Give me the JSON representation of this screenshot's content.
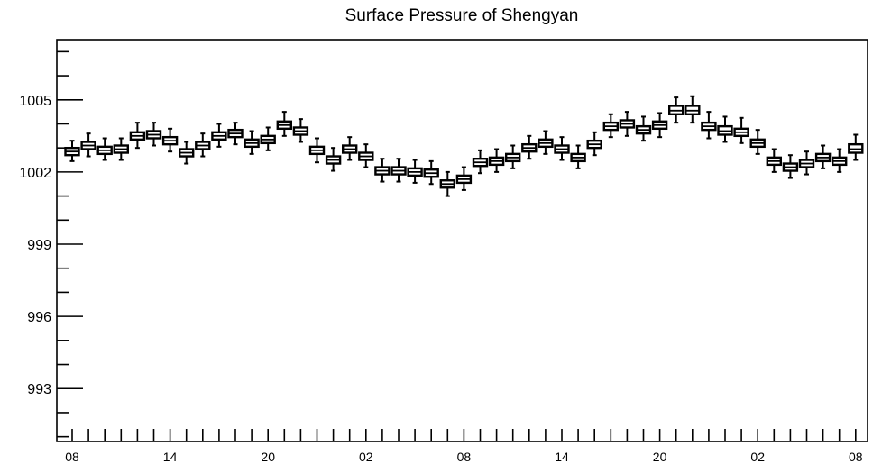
{
  "chart_data": {
    "type": "boxplot",
    "title": "Surface Pressure of Shengyan",
    "xlabel": "",
    "ylabel": "",
    "y_range": [
      990.8,
      1007.5
    ],
    "y_ticks": [
      993,
      996,
      999,
      1002,
      1005
    ],
    "y_tick_labels": [
      "993",
      "996",
      "999",
      "1002",
      "1005"
    ],
    "x_tick_labels": [
      "08",
      "14",
      "20",
      "02",
      "08",
      "14",
      "20",
      "02",
      "08"
    ],
    "x_tick_label_positions": [
      0,
      6,
      12,
      18,
      24,
      30,
      36,
      42,
      48
    ],
    "grid": false,
    "series": [
      {
        "stats": [
          {
            "x": 0,
            "whislo": 1002.45,
            "q1": 1002.7,
            "med": 1002.85,
            "q3": 1003.0,
            "whishi": 1003.3
          },
          {
            "x": 1,
            "whislo": 1002.65,
            "q1": 1002.95,
            "med": 1003.1,
            "q3": 1003.25,
            "whishi": 1003.6
          },
          {
            "x": 2,
            "whislo": 1002.5,
            "q1": 1002.75,
            "med": 1002.9,
            "q3": 1003.05,
            "whishi": 1003.4
          },
          {
            "x": 3,
            "whislo": 1002.5,
            "q1": 1002.8,
            "med": 1002.95,
            "q3": 1003.1,
            "whishi": 1003.4
          },
          {
            "x": 4,
            "whislo": 1003.0,
            "q1": 1003.35,
            "med": 1003.5,
            "q3": 1003.65,
            "whishi": 1004.05
          },
          {
            "x": 5,
            "whislo": 1003.1,
            "q1": 1003.4,
            "med": 1003.55,
            "q3": 1003.7,
            "whishi": 1004.05
          },
          {
            "x": 6,
            "whislo": 1002.85,
            "q1": 1003.15,
            "med": 1003.3,
            "q3": 1003.45,
            "whishi": 1003.8
          },
          {
            "x": 7,
            "whislo": 1002.35,
            "q1": 1002.65,
            "med": 1002.8,
            "q3": 1002.95,
            "whishi": 1003.25
          },
          {
            "x": 8,
            "whislo": 1002.65,
            "q1": 1002.95,
            "med": 1003.1,
            "q3": 1003.25,
            "whishi": 1003.6
          },
          {
            "x": 9,
            "whislo": 1003.05,
            "q1": 1003.35,
            "med": 1003.5,
            "q3": 1003.65,
            "whishi": 1004.0
          },
          {
            "x": 10,
            "whislo": 1003.15,
            "q1": 1003.45,
            "med": 1003.6,
            "q3": 1003.75,
            "whishi": 1004.05
          },
          {
            "x": 11,
            "whislo": 1002.75,
            "q1": 1003.05,
            "med": 1003.2,
            "q3": 1003.35,
            "whishi": 1003.7
          },
          {
            "x": 12,
            "whislo": 1002.9,
            "q1": 1003.2,
            "med": 1003.35,
            "q3": 1003.5,
            "whishi": 1003.85
          },
          {
            "x": 13,
            "whislo": 1003.5,
            "q1": 1003.8,
            "med": 1003.95,
            "q3": 1004.1,
            "whishi": 1004.5
          },
          {
            "x": 14,
            "whislo": 1003.25,
            "q1": 1003.55,
            "med": 1003.7,
            "q3": 1003.85,
            "whishi": 1004.2
          },
          {
            "x": 15,
            "whislo": 1002.4,
            "q1": 1002.75,
            "med": 1002.9,
            "q3": 1003.05,
            "whishi": 1003.4
          },
          {
            "x": 16,
            "whislo": 1002.05,
            "q1": 1002.35,
            "med": 1002.5,
            "q3": 1002.65,
            "whishi": 1003.0
          },
          {
            "x": 17,
            "whislo": 1002.5,
            "q1": 1002.8,
            "med": 1002.95,
            "q3": 1003.1,
            "whishi": 1003.45
          },
          {
            "x": 18,
            "whislo": 1002.2,
            "q1": 1002.5,
            "med": 1002.65,
            "q3": 1002.8,
            "whishi": 1003.15
          },
          {
            "x": 19,
            "whislo": 1001.6,
            "q1": 1001.9,
            "med": 1002.05,
            "q3": 1002.2,
            "whishi": 1002.55
          },
          {
            "x": 20,
            "whislo": 1001.6,
            "q1": 1001.9,
            "med": 1002.05,
            "q3": 1002.2,
            "whishi": 1002.55
          },
          {
            "x": 21,
            "whislo": 1001.55,
            "q1": 1001.85,
            "med": 1002.0,
            "q3": 1002.15,
            "whishi": 1002.5
          },
          {
            "x": 22,
            "whislo": 1001.5,
            "q1": 1001.8,
            "med": 1001.95,
            "q3": 1002.1,
            "whishi": 1002.45
          },
          {
            "x": 23,
            "whislo": 1001.0,
            "q1": 1001.35,
            "med": 1001.5,
            "q3": 1001.65,
            "whishi": 1002.0
          },
          {
            "x": 24,
            "whislo": 1001.25,
            "q1": 1001.55,
            "med": 1001.7,
            "q3": 1001.85,
            "whishi": 1002.2
          },
          {
            "x": 25,
            "whislo": 1001.95,
            "q1": 1002.25,
            "med": 1002.4,
            "q3": 1002.55,
            "whishi": 1002.9
          },
          {
            "x": 26,
            "whislo": 1002.0,
            "q1": 1002.3,
            "med": 1002.45,
            "q3": 1002.6,
            "whishi": 1002.95
          },
          {
            "x": 27,
            "whislo": 1002.15,
            "q1": 1002.45,
            "med": 1002.6,
            "q3": 1002.75,
            "whishi": 1003.1
          },
          {
            "x": 28,
            "whislo": 1002.55,
            "q1": 1002.85,
            "med": 1003.0,
            "q3": 1003.15,
            "whishi": 1003.5
          },
          {
            "x": 29,
            "whislo": 1002.75,
            "q1": 1003.05,
            "med": 1003.2,
            "q3": 1003.35,
            "whishi": 1003.7
          },
          {
            "x": 30,
            "whislo": 1002.5,
            "q1": 1002.8,
            "med": 1002.95,
            "q3": 1003.1,
            "whishi": 1003.45
          },
          {
            "x": 31,
            "whislo": 1002.15,
            "q1": 1002.45,
            "med": 1002.6,
            "q3": 1002.75,
            "whishi": 1003.1
          },
          {
            "x": 32,
            "whislo": 1002.7,
            "q1": 1003.0,
            "med": 1003.15,
            "q3": 1003.3,
            "whishi": 1003.65
          },
          {
            "x": 33,
            "whislo": 1003.45,
            "q1": 1003.75,
            "med": 1003.9,
            "q3": 1004.05,
            "whishi": 1004.4
          },
          {
            "x": 34,
            "whislo": 1003.5,
            "q1": 1003.85,
            "med": 1004.0,
            "q3": 1004.15,
            "whishi": 1004.5
          },
          {
            "x": 35,
            "whislo": 1003.3,
            "q1": 1003.6,
            "med": 1003.75,
            "q3": 1003.9,
            "whishi": 1004.3
          },
          {
            "x": 36,
            "whislo": 1003.45,
            "q1": 1003.8,
            "med": 1003.95,
            "q3": 1004.1,
            "whishi": 1004.45
          },
          {
            "x": 37,
            "whislo": 1004.05,
            "q1": 1004.4,
            "med": 1004.55,
            "q3": 1004.75,
            "whishi": 1005.1
          },
          {
            "x": 38,
            "whislo": 1004.05,
            "q1": 1004.4,
            "med": 1004.55,
            "q3": 1004.75,
            "whishi": 1005.15
          },
          {
            "x": 39,
            "whislo": 1003.4,
            "q1": 1003.75,
            "med": 1003.9,
            "q3": 1004.05,
            "whishi": 1004.5
          },
          {
            "x": 40,
            "whislo": 1003.25,
            "q1": 1003.55,
            "med": 1003.7,
            "q3": 1003.9,
            "whishi": 1004.3
          },
          {
            "x": 41,
            "whislo": 1003.2,
            "q1": 1003.5,
            "med": 1003.65,
            "q3": 1003.8,
            "whishi": 1004.25
          },
          {
            "x": 42,
            "whislo": 1002.75,
            "q1": 1003.05,
            "med": 1003.2,
            "q3": 1003.35,
            "whishi": 1003.75
          },
          {
            "x": 43,
            "whislo": 1002.0,
            "q1": 1002.3,
            "med": 1002.45,
            "q3": 1002.6,
            "whishi": 1002.95
          },
          {
            "x": 44,
            "whislo": 1001.75,
            "q1": 1002.05,
            "med": 1002.2,
            "q3": 1002.35,
            "whishi": 1002.7
          },
          {
            "x": 45,
            "whislo": 1001.9,
            "q1": 1002.2,
            "med": 1002.35,
            "q3": 1002.5,
            "whishi": 1002.85
          },
          {
            "x": 46,
            "whislo": 1002.15,
            "q1": 1002.45,
            "med": 1002.6,
            "q3": 1002.75,
            "whishi": 1003.1
          },
          {
            "x": 47,
            "whislo": 1002.0,
            "q1": 1002.3,
            "med": 1002.45,
            "q3": 1002.6,
            "whishi": 1002.95
          },
          {
            "x": 48,
            "whislo": 1002.5,
            "q1": 1002.8,
            "med": 1002.95,
            "q3": 1003.15,
            "whishi": 1003.55
          }
        ]
      }
    ]
  }
}
